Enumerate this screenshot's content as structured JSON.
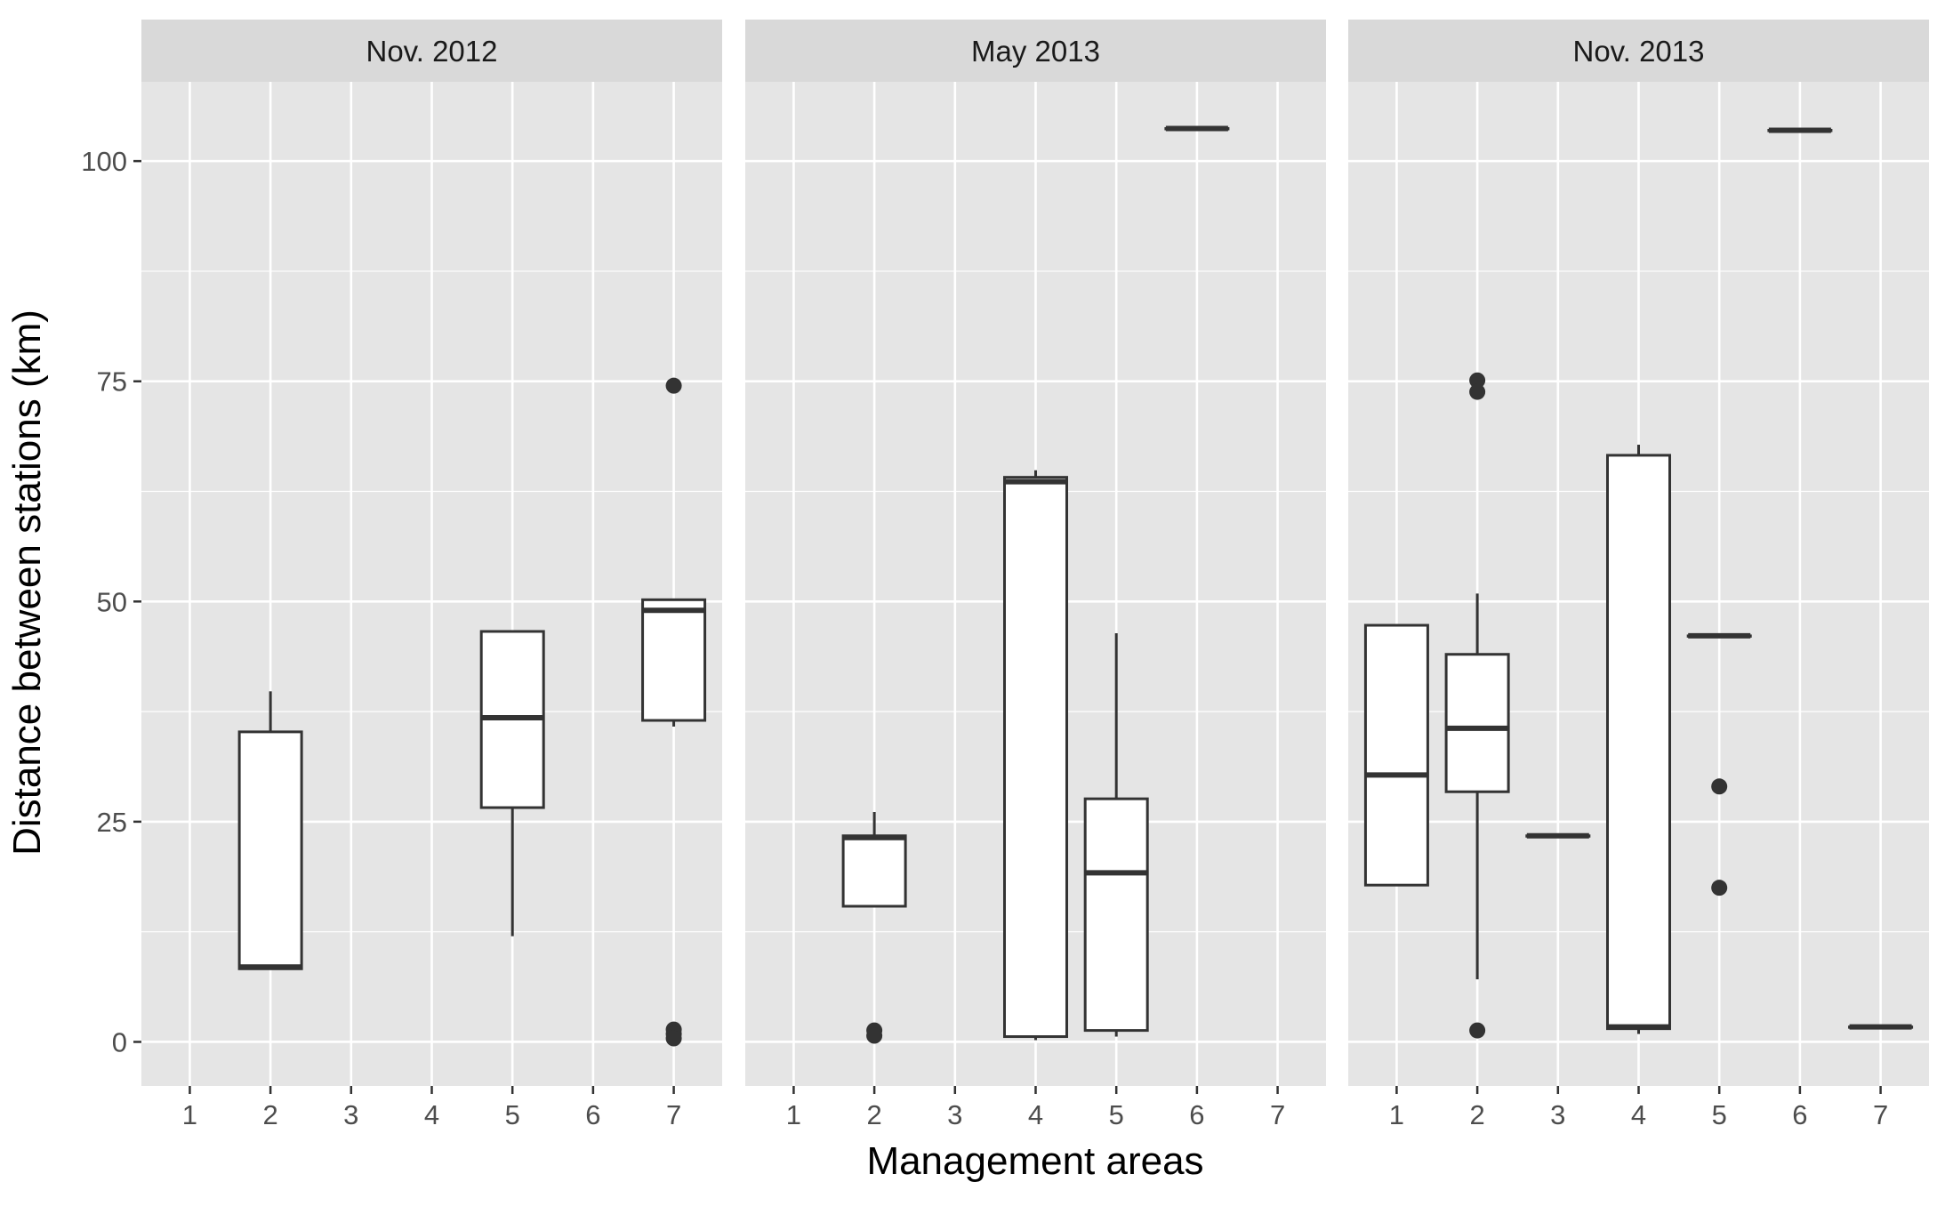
{
  "chart_data": {
    "type": "boxplot",
    "facet_variable": "survey",
    "xlabel": "Management areas",
    "ylabel": "Distance between stations (km)",
    "x_ticks": [
      "1",
      "2",
      "3",
      "4",
      "5",
      "6",
      "7"
    ],
    "y_ticks": [
      0,
      25,
      50,
      75,
      100
    ],
    "ylim": [
      -5,
      109
    ],
    "xlim": [
      0.4,
      7.6
    ],
    "grid": true,
    "colors": {
      "panel_background": "#e5e5e5",
      "strip_background": "#d9d9d9",
      "grid_line": "#ffffff",
      "box_fill": "#ffffff",
      "box_line": "#333333"
    },
    "panels": [
      {
        "title": "Nov. 2012",
        "boxes": [
          {
            "x": 2,
            "lower_whisker": 8.3,
            "q1": 8.3,
            "median": 8.5,
            "q3": 35.2,
            "upper_whisker": 39.8,
            "outliers": []
          },
          {
            "x": 5,
            "lower_whisker": 12.0,
            "q1": 26.6,
            "median": 36.8,
            "q3": 46.6,
            "upper_whisker": 46.6,
            "outliers": []
          },
          {
            "x": 7,
            "lower_whisker": 35.8,
            "q1": 36.5,
            "median": 49.0,
            "q3": 50.2,
            "upper_whisker": 50.2,
            "outliers": [
              74.5,
              1.4,
              0.9,
              0.4
            ]
          }
        ]
      },
      {
        "title": "May 2013",
        "boxes": [
          {
            "x": 2,
            "lower_whisker": 15.4,
            "q1": 15.4,
            "median": 23.2,
            "q3": 23.4,
            "upper_whisker": 26.1,
            "outliers": [
              1.3,
              0.7
            ]
          },
          {
            "x": 4,
            "lower_whisker": 0.2,
            "q1": 0.6,
            "median": 63.6,
            "q3": 64.1,
            "upper_whisker": 64.9,
            "outliers": []
          },
          {
            "x": 5,
            "lower_whisker": 0.6,
            "q1": 1.3,
            "median": 19.2,
            "q3": 27.6,
            "upper_whisker": 46.4,
            "outliers": []
          },
          {
            "x": 6,
            "lower_whisker": 103.7,
            "q1": 103.7,
            "median": 103.7,
            "q3": 103.7,
            "upper_whisker": 103.7,
            "outliers": []
          }
        ]
      },
      {
        "title": "Nov. 2013",
        "boxes": [
          {
            "x": 1,
            "lower_whisker": 17.8,
            "q1": 17.8,
            "median": 30.3,
            "q3": 47.3,
            "upper_whisker": 47.3,
            "outliers": []
          },
          {
            "x": 2,
            "lower_whisker": 7.1,
            "q1": 28.4,
            "median": 35.6,
            "q3": 44.0,
            "upper_whisker": 50.9,
            "outliers": [
              75.1,
              73.8,
              1.3
            ]
          },
          {
            "x": 3,
            "lower_whisker": 23.4,
            "q1": 23.4,
            "median": 23.4,
            "q3": 23.4,
            "upper_whisker": 23.4,
            "outliers": []
          },
          {
            "x": 4,
            "lower_whisker": 0.9,
            "q1": 1.5,
            "median": 1.7,
            "q3": 66.6,
            "upper_whisker": 67.8,
            "outliers": []
          },
          {
            "x": 5,
            "lower_whisker": 46.1,
            "q1": 46.1,
            "median": 46.1,
            "q3": 46.1,
            "upper_whisker": 46.1,
            "outliers": [
              29.0,
              17.5
            ]
          },
          {
            "x": 6,
            "lower_whisker": 103.5,
            "q1": 103.5,
            "median": 103.5,
            "q3": 103.5,
            "upper_whisker": 103.5,
            "outliers": []
          },
          {
            "x": 7,
            "lower_whisker": 1.7,
            "q1": 1.7,
            "median": 1.7,
            "q3": 1.7,
            "upper_whisker": 1.7,
            "outliers": []
          }
        ]
      }
    ]
  }
}
